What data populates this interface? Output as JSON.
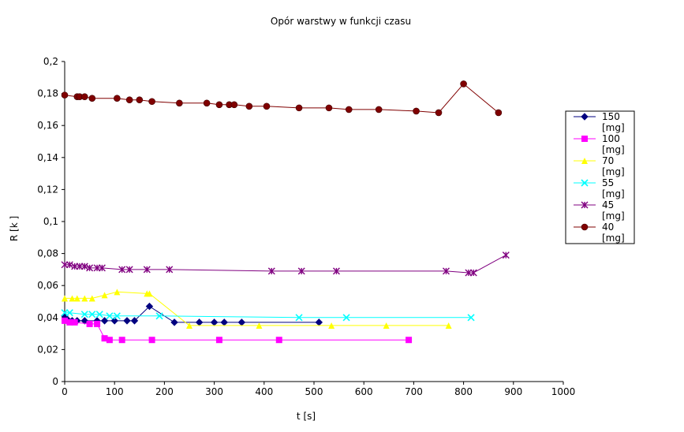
{
  "chart_data": {
    "type": "line",
    "title": "Opór warstwy w funkcji czasu",
    "xlabel": "t  [s]",
    "ylabel": "R  [k  ]",
    "xlim": [
      0,
      1000
    ],
    "ylim": [
      0,
      0.2
    ],
    "x_ticks": [
      0,
      100,
      200,
      300,
      400,
      500,
      600,
      700,
      800,
      900,
      1000
    ],
    "y_ticks": [
      {
        "value": 0,
        "label": "0"
      },
      {
        "value": 0.02,
        "label": "0,02"
      },
      {
        "value": 0.04,
        "label": "0,04"
      },
      {
        "value": 0.06,
        "label": "0,06"
      },
      {
        "value": 0.08,
        "label": "0,08"
      },
      {
        "value": 0.1,
        "label": "0,1"
      },
      {
        "value": 0.12,
        "label": "0,12"
      },
      {
        "value": 0.14,
        "label": "0,14"
      },
      {
        "value": 0.16,
        "label": "0,16"
      },
      {
        "value": 0.18,
        "label": "0,18"
      },
      {
        "value": 0.2,
        "label": "0,2"
      }
    ],
    "grid": false,
    "legend_position": "right",
    "series": [
      {
        "name": "150 [mg]",
        "color": "#000080",
        "marker": "diamond",
        "x": [
          0,
          5,
          15,
          25,
          40,
          65,
          80,
          100,
          125,
          140,
          170,
          220,
          270,
          300,
          320,
          355,
          510
        ],
        "y": [
          0.041,
          0.039,
          0.038,
          0.038,
          0.038,
          0.038,
          0.038,
          0.038,
          0.038,
          0.038,
          0.047,
          0.037,
          0.037,
          0.037,
          0.037,
          0.037,
          0.037
        ]
      },
      {
        "name": "100 [mg]",
        "color": "#ff00ff",
        "marker": "square",
        "x": [
          0,
          10,
          20,
          50,
          65,
          80,
          90,
          115,
          175,
          310,
          430,
          690
        ],
        "y": [
          0.038,
          0.037,
          0.037,
          0.036,
          0.036,
          0.027,
          0.026,
          0.026,
          0.026,
          0.026,
          0.026,
          0.026
        ]
      },
      {
        "name": "70 [mg]",
        "color": "#ffff00",
        "marker": "triangle",
        "x": [
          0,
          15,
          25,
          40,
          55,
          80,
          105,
          165,
          170,
          250,
          390,
          535,
          645,
          770
        ],
        "y": [
          0.052,
          0.052,
          0.052,
          0.052,
          0.052,
          0.054,
          0.056,
          0.055,
          0.055,
          0.035,
          0.035,
          0.035,
          0.035,
          0.035
        ]
      },
      {
        "name": "55 [mg]",
        "color": "#00ffff",
        "marker": "x",
        "x": [
          0,
          10,
          40,
          55,
          70,
          90,
          105,
          190,
          470,
          565,
          815
        ],
        "y": [
          0.043,
          0.043,
          0.042,
          0.042,
          0.042,
          0.041,
          0.041,
          0.041,
          0.04,
          0.04,
          0.04
        ]
      },
      {
        "name": "45 [mg]",
        "color": "#800080",
        "marker": "star",
        "x": [
          0,
          10,
          20,
          30,
          40,
          50,
          65,
          75,
          115,
          130,
          165,
          210,
          415,
          475,
          545,
          765,
          810,
          820,
          885
        ],
        "y": [
          0.073,
          0.073,
          0.072,
          0.072,
          0.072,
          0.071,
          0.071,
          0.071,
          0.07,
          0.07,
          0.07,
          0.07,
          0.069,
          0.069,
          0.069,
          0.069,
          0.068,
          0.068,
          0.079
        ]
      },
      {
        "name": "40 [mg]",
        "color": "#800000",
        "marker": "circle",
        "x": [
          0,
          25,
          30,
          40,
          55,
          105,
          130,
          150,
          175,
          230,
          285,
          310,
          330,
          340,
          370,
          405,
          470,
          530,
          570,
          630,
          705,
          750,
          800,
          870
        ],
        "y": [
          0.179,
          0.178,
          0.178,
          0.178,
          0.177,
          0.177,
          0.176,
          0.176,
          0.175,
          0.174,
          0.174,
          0.173,
          0.173,
          0.173,
          0.172,
          0.172,
          0.171,
          0.171,
          0.17,
          0.17,
          0.169,
          0.168,
          0.186,
          0.168
        ]
      }
    ]
  }
}
